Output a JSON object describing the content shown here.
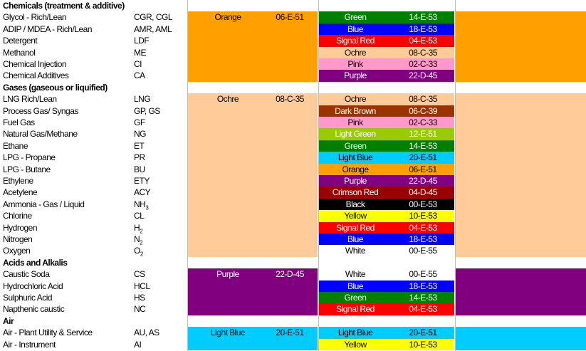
{
  "colors": {
    "orange": "#ff9f00",
    "ochre": "#ffcc99",
    "purple": "#800080",
    "light_blue": "#00ccff"
  },
  "sections": [
    {
      "header": "Chemicals (treatment & additive)",
      "band": {
        "name": "Orange",
        "code": "06-E-51",
        "color": "#ff9f00"
      },
      "rows": [
        {
          "name": "Glycol - Rich/Lean",
          "abbr": "CGR, CGL",
          "swatch": {
            "name": "Green",
            "code": "14-E-53",
            "bg": "#008000",
            "fg": "#ffffff"
          }
        },
        {
          "name": "ADIP / MDEA - Rich/Lean",
          "abbr": "AMR, AML",
          "swatch": {
            "name": "Blue",
            "code": "18-E-53",
            "bg": "#0000ff",
            "fg": "#ffffff"
          }
        },
        {
          "name": "Detergent",
          "abbr": "LDF",
          "swatch": {
            "name": "Signal Red",
            "code": "04-E-53",
            "bg": "#ff0000",
            "fg": "#ffffff"
          }
        },
        {
          "name": "Methanol",
          "abbr": "ME",
          "swatch": {
            "name": "Ochre",
            "code": "08-C-35",
            "bg": "#ffcc99",
            "fg": "#000000"
          }
        },
        {
          "name": "Chemical Injection",
          "abbr": "CI",
          "swatch": {
            "name": "Pink",
            "code": "02-C-33",
            "bg": "#ff99cc",
            "fg": "#000000"
          }
        },
        {
          "name": "Chemical Additives",
          "abbr": "CA",
          "swatch": {
            "name": "Purple",
            "code": "22-D-45",
            "bg": "#800080",
            "fg": "#ffffff"
          }
        }
      ]
    },
    {
      "header": "Gases (gaseous or liquified)",
      "band": {
        "name": "Ochre",
        "code": "08-C-35",
        "color": "#ffcc99"
      },
      "rows": [
        {
          "name": "LNG Rich/Lean",
          "abbr": "LNG",
          "swatch": {
            "name": "Ochre",
            "code": "08-C-35",
            "bg": "#ffcc99",
            "fg": "#000000"
          }
        },
        {
          "name": "Process Gas/ Syngas",
          "abbr": "GP, GS",
          "swatch": {
            "name": "Dark Brown",
            "code": "06-C-39",
            "bg": "#993300",
            "fg": "#ffffff"
          }
        },
        {
          "name": "Fuel Gas",
          "abbr": "GF",
          "swatch": {
            "name": "Pink",
            "code": "02-C-33",
            "bg": "#ff99cc",
            "fg": "#000000"
          }
        },
        {
          "name": "Natural Gas/Methane",
          "abbr": "NG",
          "swatch": {
            "name": "Light Green",
            "code": "12-E-51",
            "bg": "#99cc00",
            "fg": "#ffffff"
          }
        },
        {
          "name": "Ethane",
          "abbr": "ET",
          "swatch": {
            "name": "Green",
            "code": "14-E-53",
            "bg": "#008000",
            "fg": "#ffffff"
          }
        },
        {
          "name": "LPG - Propane",
          "abbr": "PR",
          "swatch": {
            "name": "Light Blue",
            "code": "20-E-51",
            "bg": "#00ccff",
            "fg": "#000000"
          }
        },
        {
          "name": "LPG - Butane",
          "abbr": "BU",
          "swatch": {
            "name": "Orange",
            "code": "06-E-51",
            "bg": "#ff9f00",
            "fg": "#000000"
          }
        },
        {
          "name": "Ethylene",
          "abbr": "ETY",
          "swatch": {
            "name": "Purple",
            "code": "22-D-45",
            "bg": "#800080",
            "fg": "#ffffff"
          }
        },
        {
          "name": "Acetylene",
          "abbr": "ACY",
          "swatch": {
            "name": "Crimson Red",
            "code": "04-D-45",
            "bg": "#990000",
            "fg": "#ffffff"
          }
        },
        {
          "name": "Ammonia - Gas / Liquid",
          "abbr": "NH",
          "abbr_sub": "3",
          "swatch": {
            "name": "Black",
            "code": "00-E-53",
            "bg": "#000000",
            "fg": "#ffffff"
          }
        },
        {
          "name": "Chlorine",
          "abbr": "CL",
          "swatch": {
            "name": "Yellow",
            "code": "10-E-53",
            "bg": "#ffff00",
            "fg": "#000000"
          }
        },
        {
          "name": "Hydrogen",
          "abbr": "H",
          "abbr_sub": "2",
          "swatch": {
            "name": "Signal Red",
            "code": "04-E-53",
            "bg": "#ff0000",
            "fg": "#ffffff"
          }
        },
        {
          "name": "Nitrogen",
          "abbr": "N",
          "abbr_sub": "2",
          "swatch": {
            "name": "Blue",
            "code": "18-E-53",
            "bg": "#0000ff",
            "fg": "#ffffff"
          }
        },
        {
          "name": "Oxygen",
          "abbr": "O",
          "abbr_sub": "2",
          "swatch": {
            "name": "White",
            "code": "00-E-55",
            "bg": "#ffffff",
            "fg": "#000000"
          }
        }
      ]
    },
    {
      "header": "Acids and Alkalis",
      "band": {
        "name": "Purple",
        "code": "22-D-45",
        "color": "#800080",
        "fg": "#ffffff"
      },
      "rows": [
        {
          "name": "Caustic Soda",
          "abbr": "CS",
          "swatch": {
            "name": "White",
            "code": "00-E-55",
            "bg": "#ffffff",
            "fg": "#000000"
          }
        },
        {
          "name": "Hydrochloric Acid",
          "abbr": "HCL",
          "swatch": {
            "name": "Blue",
            "code": "18-E-53",
            "bg": "#0000ff",
            "fg": "#ffffff"
          }
        },
        {
          "name": "Sulphuric Acid",
          "abbr": "HS",
          "swatch": {
            "name": "Green",
            "code": "14-E-53",
            "bg": "#008000",
            "fg": "#ffffff"
          }
        },
        {
          "name": "Napthenic caustic",
          "abbr": "NC",
          "swatch": {
            "name": "Signal Red",
            "code": "04-E-53",
            "bg": "#ff0000",
            "fg": "#ffffff"
          }
        }
      ]
    },
    {
      "header": "Air",
      "band": {
        "name": "Light Blue",
        "code": "20-E-51",
        "color": "#00ccff"
      },
      "rows": [
        {
          "name": "Air - Plant Utility & Service",
          "abbr": "AU, AS",
          "swatch": {
            "name": "Light Blue",
            "code": "20-E-51",
            "bg": "#00ccff",
            "fg": "#000000"
          }
        },
        {
          "name": "Air - Instrument",
          "abbr": "AI",
          "swatch": {
            "name": "Yellow",
            "code": "10-E-53",
            "bg": "#ffff00",
            "fg": "#000000"
          }
        }
      ]
    }
  ]
}
